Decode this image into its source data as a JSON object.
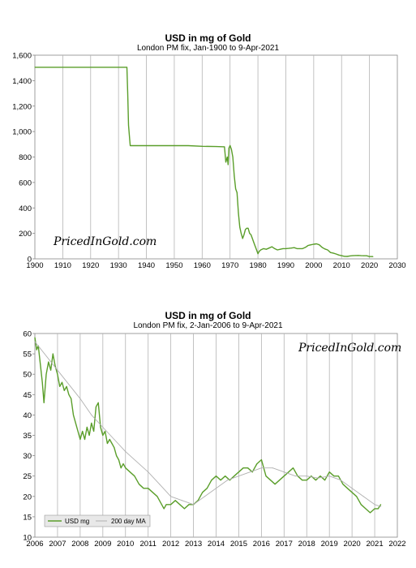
{
  "chart_data": [
    {
      "type": "line",
      "title": "USD in mg of Gold",
      "subtitle": "London PM fix, Jan-1900 to 9-Apr-2021",
      "watermark": "PricedInGold.com",
      "xlim": [
        1900,
        2030
      ],
      "ylim": [
        0,
        1600
      ],
      "xticks": [
        1900,
        1910,
        1920,
        1930,
        1940,
        1950,
        1960,
        1970,
        1980,
        1990,
        2000,
        2010,
        2020,
        2030
      ],
      "yticks": [
        "0",
        "200",
        "400",
        "600",
        "800",
        "1,000",
        "1,200",
        "1,400",
        "1,600"
      ],
      "grid": "vertical",
      "color": "#5a9e2a",
      "series": [
        {
          "x": [
            1900,
            1933.0,
            1933.3,
            1933.6,
            1934.0,
            1934.2,
            1940,
            1950,
            1955,
            1960,
            1965,
            1968,
            1968.5,
            1969,
            1969.3,
            1969.6,
            1970,
            1970.5,
            1971,
            1971.5,
            1972,
            1972.5,
            1973,
            1973.5,
            1974,
            1974.5,
            1975,
            1975.5,
            1976,
            1976.5,
            1977,
            1977.5,
            1978,
            1978.5,
            1979,
            1979.5,
            1980,
            1980.5,
            1981,
            1982,
            1983,
            1984,
            1985,
            1986,
            1987,
            1988,
            1989,
            1990,
            1991,
            1992,
            1993,
            1994,
            1995,
            1996,
            1997,
            1998,
            1999,
            2000,
            2001,
            2002,
            2003,
            2004,
            2005,
            2006,
            2007,
            2008,
            2009,
            2010,
            2011,
            2012,
            2013,
            2014,
            2015,
            2016,
            2017,
            2018,
            2019,
            2020,
            2021.27
          ],
          "y": [
            1505,
            1505,
            1300,
            1050,
            940,
            889,
            889,
            889,
            889,
            884,
            882,
            880,
            760,
            800,
            740,
            870,
            890,
            860,
            800,
            650,
            550,
            520,
            360,
            250,
            200,
            160,
            190,
            230,
            240,
            240,
            200,
            190,
            160,
            130,
            100,
            70,
            40,
            60,
            70,
            80,
            75,
            85,
            95,
            80,
            70,
            75,
            80,
            80,
            82,
            85,
            88,
            80,
            80,
            80,
            90,
            105,
            110,
            115,
            118,
            110,
            90,
            78,
            70,
            50,
            45,
            38,
            30,
            25,
            20,
            19,
            23,
            25,
            26,
            27,
            25,
            24,
            24,
            18,
            18
          ]
        }
      ]
    },
    {
      "type": "line",
      "title": "USD in mg of Gold",
      "subtitle": "London PM fix, 2-Jan-2006 to 9-Apr-2021",
      "watermark": "PricedInGold.com",
      "xlim": [
        2006,
        2022
      ],
      "ylim": [
        10,
        60
      ],
      "xticks": [
        2006,
        2007,
        2008,
        2009,
        2010,
        2011,
        2012,
        2013,
        2014,
        2015,
        2016,
        2017,
        2018,
        2019,
        2020,
        2021,
        2022
      ],
      "yticks": [
        10,
        15,
        20,
        25,
        30,
        35,
        40,
        45,
        50,
        55,
        60
      ],
      "grid": "vertical",
      "legend": "bottom-left",
      "series": [
        {
          "name": "USD mg",
          "color": "#5a9e2a",
          "x": [
            2006.0,
            2006.08,
            2006.15,
            2006.25,
            2006.33,
            2006.4,
            2006.5,
            2006.6,
            2006.7,
            2006.8,
            2006.9,
            2007.0,
            2007.1,
            2007.2,
            2007.3,
            2007.4,
            2007.5,
            2007.6,
            2007.7,
            2007.8,
            2007.9,
            2008.0,
            2008.1,
            2008.2,
            2008.3,
            2008.4,
            2008.5,
            2008.6,
            2008.7,
            2008.8,
            2008.9,
            2009.0,
            2009.1,
            2009.2,
            2009.3,
            2009.4,
            2009.5,
            2009.6,
            2009.7,
            2009.8,
            2009.9,
            2010.0,
            2010.2,
            2010.4,
            2010.6,
            2010.8,
            2011.0,
            2011.2,
            2011.4,
            2011.6,
            2011.7,
            2011.8,
            2012.0,
            2012.2,
            2012.4,
            2012.6,
            2012.8,
            2013.0,
            2013.2,
            2013.4,
            2013.6,
            2013.8,
            2014.0,
            2014.2,
            2014.4,
            2014.6,
            2014.8,
            2015.0,
            2015.2,
            2015.4,
            2015.6,
            2015.8,
            2016.0,
            2016.2,
            2016.4,
            2016.6,
            2016.8,
            2017.0,
            2017.2,
            2017.4,
            2017.6,
            2017.8,
            2018.0,
            2018.2,
            2018.4,
            2018.6,
            2018.8,
            2019.0,
            2019.2,
            2019.4,
            2019.6,
            2019.8,
            2020.0,
            2020.2,
            2020.4,
            2020.6,
            2020.8,
            2021.0,
            2021.15,
            2021.27
          ],
          "y": [
            59,
            56,
            57,
            52,
            48,
            43,
            50,
            53,
            51,
            55,
            52,
            50,
            47,
            48,
            46,
            47,
            45,
            44,
            40,
            38,
            36,
            34,
            36,
            34,
            37,
            35,
            38,
            36,
            42,
            43,
            37,
            35,
            36,
            33,
            34,
            33,
            32,
            30,
            29,
            27,
            28,
            27,
            26,
            25,
            23,
            22,
            22,
            21,
            20,
            18,
            17,
            18,
            18,
            19,
            18,
            17,
            18,
            18,
            19,
            21,
            22,
            24,
            25,
            24,
            25,
            24,
            25,
            26,
            27,
            27,
            26,
            28,
            29,
            25,
            24,
            23,
            24,
            25,
            26,
            27,
            25,
            24,
            24,
            25,
            24,
            25,
            24,
            26,
            25,
            25,
            23,
            22,
            21,
            20,
            18,
            17,
            16,
            17,
            17,
            18
          ]
        },
        {
          "name": "200 day MA",
          "color": "#b0b0b0",
          "x": [
            2006.0,
            2007.0,
            2008.0,
            2008.5,
            2009.0,
            2009.5,
            2010.0,
            2011.0,
            2011.5,
            2012.0,
            2012.5,
            2013.0,
            2013.5,
            2014.0,
            2014.5,
            2015.0,
            2015.5,
            2016.0,
            2016.5,
            2017.0,
            2017.5,
            2018.0,
            2018.5,
            2019.0,
            2019.5,
            2020.0,
            2020.5,
            2021.0,
            2021.27
          ],
          "y": [
            58,
            51,
            44,
            40,
            37,
            34,
            31,
            26,
            23,
            20,
            19,
            18,
            20,
            22,
            24,
            25,
            26,
            27,
            27,
            26,
            25,
            25,
            24.5,
            25,
            24,
            22,
            20,
            18,
            17.5
          ]
        }
      ]
    }
  ]
}
